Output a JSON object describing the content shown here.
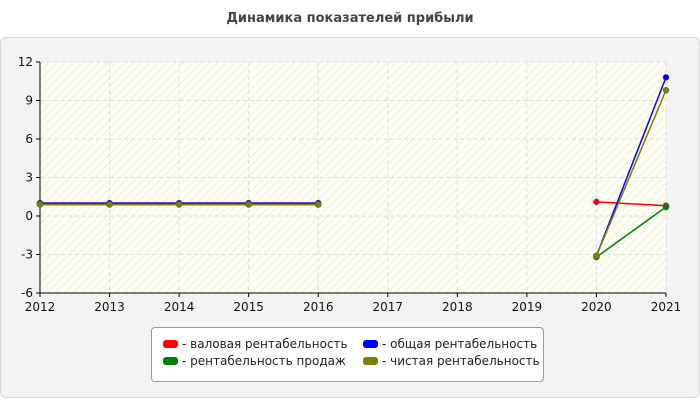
{
  "chart_data": {
    "type": "line",
    "title": "Динамика показателей прибыли",
    "x": [
      2012,
      2013,
      2014,
      2015,
      2016,
      2017,
      2018,
      2019,
      2020,
      2021
    ],
    "x_ticks": [
      "2012",
      "2013",
      "2014",
      "2015",
      "2016",
      "2017",
      "2018",
      "2019",
      "2020",
      "2021"
    ],
    "ylim": [
      -6,
      12
    ],
    "y_ticks": [
      "-6",
      "-3",
      "0",
      "3",
      "6",
      "9",
      "12"
    ],
    "y_tick_values": [
      -6,
      -3,
      0,
      3,
      6,
      9,
      12
    ],
    "grid": true,
    "legend_position": "bottom",
    "series": [
      {
        "name": "- валовая рентабельность",
        "color": "#ff0000",
        "points": [
          [
            2012,
            1.0
          ],
          [
            2013,
            1.0
          ],
          [
            2014,
            1.0
          ],
          [
            2015,
            1.0
          ],
          [
            2016,
            1.0
          ],
          [
            2020,
            1.1
          ],
          [
            2021,
            0.8
          ]
        ]
      },
      {
        "name": "- общая рентабельность",
        "color": "#0000ff",
        "points": [
          [
            2012,
            1.0
          ],
          [
            2013,
            1.0
          ],
          [
            2014,
            1.0
          ],
          [
            2015,
            1.0
          ],
          [
            2016,
            1.0
          ],
          [
            2020,
            -3.1
          ],
          [
            2021,
            10.8
          ]
        ]
      },
      {
        "name": "- рентабельность продаж",
        "color": "#008000",
        "points": [
          [
            2012,
            0.9
          ],
          [
            2013,
            0.9
          ],
          [
            2014,
            0.9
          ],
          [
            2015,
            0.9
          ],
          [
            2016,
            0.9
          ],
          [
            2020,
            -3.2
          ],
          [
            2021,
            0.7
          ]
        ]
      },
      {
        "name": "- чистая рентабельность",
        "color": "#808000",
        "points": [
          [
            2012,
            0.9
          ],
          [
            2013,
            0.9
          ],
          [
            2014,
            0.9
          ],
          [
            2015,
            0.9
          ],
          [
            2016,
            0.9
          ],
          [
            2020,
            -3.1
          ],
          [
            2021,
            9.8
          ]
        ]
      }
    ]
  }
}
